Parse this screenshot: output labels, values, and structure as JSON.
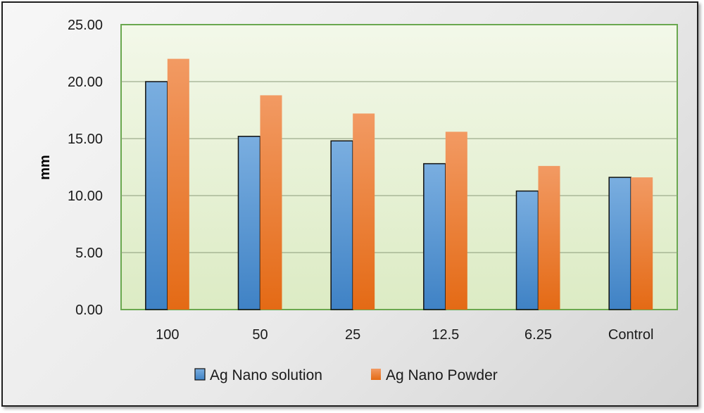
{
  "chart_data": {
    "type": "bar",
    "title": "",
    "xlabel": "",
    "ylabel": "mm",
    "ylim": [
      0,
      25
    ],
    "y_ticks": [
      "0.00",
      "5.00",
      "10.00",
      "15.00",
      "20.00",
      "25.00"
    ],
    "categories": [
      "100",
      "50",
      "25",
      "12.5",
      "6.25",
      "Control"
    ],
    "series": [
      {
        "name": "Ag Nano solution",
        "values": [
          20.0,
          15.2,
          14.8,
          12.8,
          10.4,
          11.6
        ],
        "color": "#5b9bd5"
      },
      {
        "name": "Ag Nano Powder",
        "values": [
          22.0,
          18.8,
          17.2,
          15.6,
          12.6,
          11.6
        ],
        "color": "#ed7d31"
      }
    ],
    "grid": true,
    "plot_background": "#e8f2d6",
    "plot_border_color": "#6aa84f",
    "legend_position": "bottom"
  }
}
